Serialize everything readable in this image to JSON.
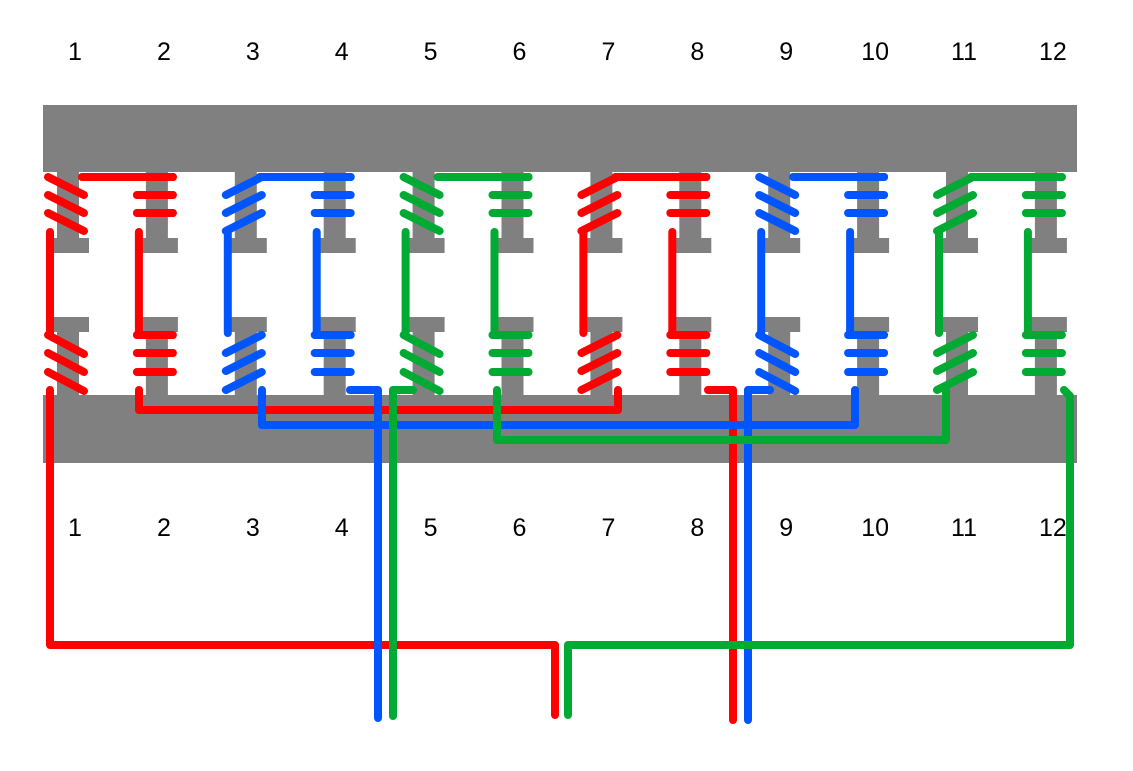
{
  "top_labels": [
    "1",
    "2",
    "3",
    "4",
    "5",
    "6",
    "7",
    "8",
    "9",
    "10",
    "11",
    "12"
  ],
  "bottom_labels": [
    "1",
    "2",
    "3",
    "4",
    "5",
    "6",
    "7",
    "8",
    "9",
    "10",
    "11",
    "12"
  ],
  "colors": {
    "stator": "#808080",
    "phase_red": "#ff0000",
    "phase_blue": "#0055ff",
    "phase_green": "#00aa33"
  },
  "teeth": [
    {
      "phase": "phase_red",
      "coil": "slant-down"
    },
    {
      "phase": "phase_red",
      "coil": "horizontal"
    },
    {
      "phase": "phase_blue",
      "coil": "slant-up"
    },
    {
      "phase": "phase_blue",
      "coil": "horizontal"
    },
    {
      "phase": "phase_green",
      "coil": "slant-down"
    },
    {
      "phase": "phase_green",
      "coil": "horizontal"
    },
    {
      "phase": "phase_red",
      "coil": "slant-up"
    },
    {
      "phase": "phase_red",
      "coil": "horizontal"
    },
    {
      "phase": "phase_blue",
      "coil": "slant-down"
    },
    {
      "phase": "phase_blue",
      "coil": "horizontal"
    },
    {
      "phase": "phase_green",
      "coil": "slant-up"
    },
    {
      "phase": "phase_green",
      "coil": "horizontal"
    }
  ]
}
